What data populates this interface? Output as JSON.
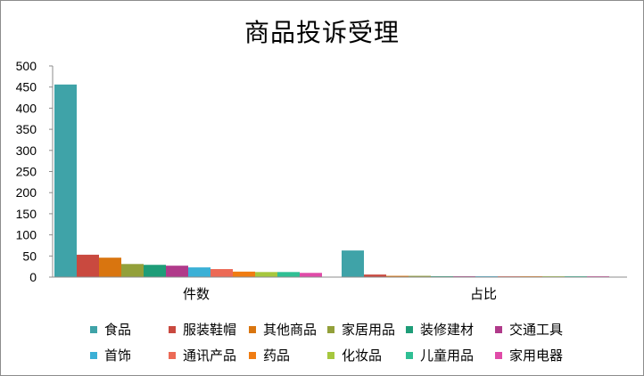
{
  "chart_data": {
    "type": "bar",
    "title": "商品投诉受理",
    "categories": [
      "件数",
      "占比"
    ],
    "ylim": [
      0,
      500
    ],
    "yticks": [
      0,
      50,
      100,
      150,
      200,
      250,
      300,
      350,
      400,
      450,
      500
    ],
    "grid": false,
    "legend_position": "bottom",
    "series": [
      {
        "name": "食品",
        "color": "#3fa3a8",
        "values": [
          456,
          63
        ]
      },
      {
        "name": "服装鞋帽",
        "color": "#c9493f",
        "values": [
          53,
          6
        ]
      },
      {
        "name": "其他商品",
        "color": "#d9750f",
        "values": [
          46,
          3
        ]
      },
      {
        "name": "家居用品",
        "color": "#93a03a",
        "values": [
          31,
          3
        ]
      },
      {
        "name": "装修建材",
        "color": "#1e9d78",
        "values": [
          29,
          2
        ]
      },
      {
        "name": "交通工具",
        "color": "#b03a8a",
        "values": [
          27,
          2
        ]
      },
      {
        "name": "首饰",
        "color": "#3bb0d6",
        "values": [
          23,
          2
        ]
      },
      {
        "name": "通讯产品",
        "color": "#ec6a56",
        "values": [
          19,
          2
        ]
      },
      {
        "name": "药品",
        "color": "#f07c12",
        "values": [
          13,
          2
        ]
      },
      {
        "name": "化妆品",
        "color": "#a6c73e",
        "values": [
          12,
          2
        ]
      },
      {
        "name": "儿童用品",
        "color": "#2fbf94",
        "values": [
          12,
          2
        ]
      },
      {
        "name": "家用电器",
        "color": "#e04ba8",
        "values": [
          10,
          2
        ]
      }
    ]
  }
}
